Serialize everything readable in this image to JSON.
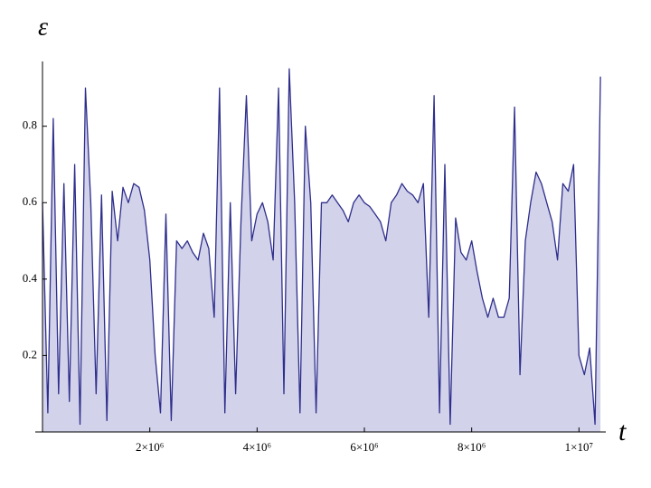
{
  "chart_data": {
    "type": "area",
    "ylabel": "ε",
    "xlabel": "t",
    "color": "#2e2e8c",
    "fill": "#d2d2ea",
    "xlim": [
      0,
      10500000
    ],
    "ylim": [
      0,
      0.96
    ],
    "xticks": [
      {
        "value": 2000000,
        "label": "2×10⁶"
      },
      {
        "value": 4000000,
        "label": "4×10⁶"
      },
      {
        "value": 6000000,
        "label": "6×10⁶"
      },
      {
        "value": 8000000,
        "label": "8×10⁶"
      },
      {
        "value": 10000000,
        "label": "1×10⁷"
      }
    ],
    "yticks": [
      0.2,
      0.4,
      0.6,
      0.8
    ],
    "x": [
      0,
      100000,
      200000,
      300000,
      400000,
      500000,
      600000,
      700000,
      800000,
      900000,
      1000000,
      1100000,
      1200000,
      1300000,
      1400000,
      1500000,
      1600000,
      1700000,
      1800000,
      1900000,
      2000000,
      2100000,
      2200000,
      2300000,
      2400000,
      2500000,
      2600000,
      2700000,
      2800000,
      2900000,
      3000000,
      3100000,
      3200000,
      3300000,
      3400000,
      3500000,
      3600000,
      3700000,
      3800000,
      3900000,
      4000000,
      4100000,
      4200000,
      4300000,
      4400000,
      4500000,
      4600000,
      4700000,
      4800000,
      4900000,
      5000000,
      5100000,
      5200000,
      5300000,
      5400000,
      5500000,
      5600000,
      5700000,
      5800000,
      5900000,
      6000000,
      6100000,
      6200000,
      6300000,
      6400000,
      6500000,
      6600000,
      6700000,
      6800000,
      6900000,
      7000000,
      7100000,
      7200000,
      7300000,
      7400000,
      7500000,
      7600000,
      7700000,
      7800000,
      7900000,
      8000000,
      8100000,
      8200000,
      8300000,
      8400000,
      8500000,
      8600000,
      8700000,
      8800000,
      8900000,
      9000000,
      9100000,
      9200000,
      9300000,
      9400000,
      9500000,
      9600000,
      9700000,
      9800000,
      9900000,
      10000000,
      10100000,
      10200000,
      10300000,
      10400000
    ],
    "values": [
      0.6,
      0.05,
      0.82,
      0.1,
      0.65,
      0.08,
      0.7,
      0.02,
      0.9,
      0.6,
      0.1,
      0.62,
      0.03,
      0.63,
      0.5,
      0.64,
      0.6,
      0.65,
      0.64,
      0.58,
      0.45,
      0.2,
      0.05,
      0.57,
      0.03,
      0.5,
      0.48,
      0.5,
      0.47,
      0.45,
      0.52,
      0.48,
      0.3,
      0.9,
      0.05,
      0.6,
      0.1,
      0.55,
      0.88,
      0.5,
      0.57,
      0.6,
      0.55,
      0.45,
      0.9,
      0.1,
      0.95,
      0.6,
      0.05,
      0.8,
      0.6,
      0.05,
      0.6,
      0.6,
      0.62,
      0.6,
      0.58,
      0.55,
      0.6,
      0.62,
      0.6,
      0.59,
      0.57,
      0.55,
      0.5,
      0.6,
      0.62,
      0.65,
      0.63,
      0.62,
      0.6,
      0.65,
      0.3,
      0.88,
      0.05,
      0.7,
      0.02,
      0.56,
      0.47,
      0.45,
      0.5,
      0.42,
      0.35,
      0.3,
      0.35,
      0.3,
      0.3,
      0.35,
      0.85,
      0.15,
      0.5,
      0.6,
      0.68,
      0.65,
      0.6,
      0.55,
      0.45,
      0.65,
      0.63,
      0.7,
      0.2,
      0.15,
      0.22,
      0.02,
      0.93
    ]
  }
}
